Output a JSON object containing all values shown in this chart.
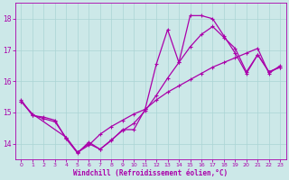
{
  "xlabel": "Windchill (Refroidissement éolien,°C)",
  "background_color": "#cce8e8",
  "line_color": "#aa00aa",
  "xlim": [
    -0.5,
    23.5
  ],
  "ylim": [
    13.5,
    18.5
  ],
  "yticks": [
    14,
    15,
    16,
    17,
    18
  ],
  "xticks": [
    0,
    1,
    2,
    3,
    4,
    5,
    6,
    7,
    8,
    9,
    10,
    11,
    12,
    13,
    14,
    15,
    16,
    17,
    18,
    19,
    20,
    21,
    22,
    23
  ],
  "curve1_x": [
    0,
    1,
    2,
    3,
    4,
    5,
    6,
    7,
    8,
    9,
    10,
    11,
    12,
    13,
    14,
    15,
    16,
    17,
    18,
    19,
    20,
    21,
    22,
    23
  ],
  "curve1_y": [
    15.4,
    14.9,
    14.85,
    14.75,
    14.15,
    13.7,
    14.05,
    13.82,
    14.1,
    14.45,
    14.45,
    15.1,
    16.55,
    17.65,
    16.6,
    18.1,
    18.1,
    18.0,
    17.45,
    16.9,
    16.25,
    16.85,
    16.3,
    16.45
  ],
  "curve2_x": [
    0,
    1,
    4,
    5,
    6,
    7,
    8,
    9,
    10,
    11,
    12,
    13,
    14,
    15,
    16,
    17,
    18,
    19,
    20,
    21,
    22,
    23
  ],
  "curve2_y": [
    15.35,
    14.95,
    14.2,
    13.72,
    13.95,
    14.3,
    14.55,
    14.75,
    14.95,
    15.1,
    15.4,
    15.65,
    15.85,
    16.05,
    16.25,
    16.45,
    16.6,
    16.75,
    16.9,
    17.05,
    16.25,
    16.5
  ],
  "curve3_x": [
    0,
    1,
    2,
    3,
    4,
    5,
    6,
    7,
    8,
    9,
    10,
    11,
    12,
    13,
    14,
    15,
    16,
    17,
    18,
    19,
    20,
    21,
    22,
    23
  ],
  "curve3_y": [
    15.35,
    14.92,
    14.8,
    14.7,
    14.18,
    13.72,
    14.0,
    13.82,
    14.12,
    14.42,
    14.65,
    15.05,
    15.55,
    16.1,
    16.6,
    17.1,
    17.5,
    17.75,
    17.4,
    17.05,
    16.3,
    16.85,
    16.3,
    16.45
  ]
}
